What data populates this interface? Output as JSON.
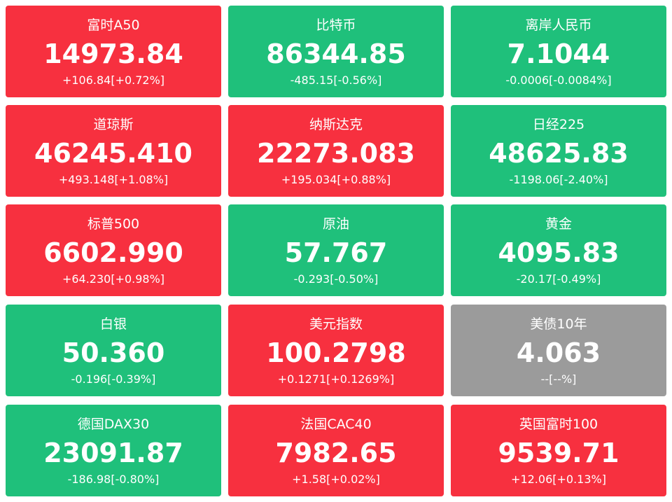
{
  "tiles": [
    {
      "name": "富时A50",
      "value": "14973.84",
      "change": "+106.84[+0.72%]",
      "color": "#f7303f"
    },
    {
      "name": "比特币",
      "value": "86344.85",
      "change": "-485.15[-0.56%]",
      "color": "#1fc07b"
    },
    {
      "name": "离岸人民币",
      "value": "7.1044",
      "change": "-0.0006[-0.0084%]",
      "color": "#1fc07b"
    },
    {
      "name": "道琼斯",
      "value": "46245.410",
      "change": "+493.148[+1.08%]",
      "color": "#f7303f"
    },
    {
      "name": "纳斯达克",
      "value": "22273.083",
      "change": "+195.034[+0.88%]",
      "color": "#f7303f"
    },
    {
      "name": "日经225",
      "value": "48625.83",
      "change": "-1198.06[-2.40%]",
      "color": "#1fc07b"
    },
    {
      "name": "标普500",
      "value": "6602.990",
      "change": "+64.230[+0.98%]",
      "color": "#f7303f"
    },
    {
      "name": "原油",
      "value": "57.767",
      "change": "-0.293[-0.50%]",
      "color": "#1fc07b"
    },
    {
      "name": "黄金",
      "value": "4095.83",
      "change": "-20.17[-0.49%]",
      "color": "#1fc07b"
    },
    {
      "name": "白银",
      "value": "50.360",
      "change": "-0.196[-0.39%]",
      "color": "#1fc07b"
    },
    {
      "name": "美元指数",
      "value": "100.2798",
      "change": "+0.1271[+0.1269%]",
      "color": "#f7303f"
    },
    {
      "name": "美债10年",
      "value": "4.063",
      "change": "--[--%]",
      "color": "#9b9b9b"
    },
    {
      "name": "德国DAX30",
      "value": "23091.87",
      "change": "-186.98[-0.80%]",
      "color": "#1fc07b"
    },
    {
      "name": "法国CAC40",
      "value": "7982.65",
      "change": "+1.58[+0.02%]",
      "color": "#f7303f"
    },
    {
      "name": "英国富时100",
      "value": "9539.71",
      "change": "+12.06[+0.13%]",
      "color": "#f7303f"
    }
  ]
}
